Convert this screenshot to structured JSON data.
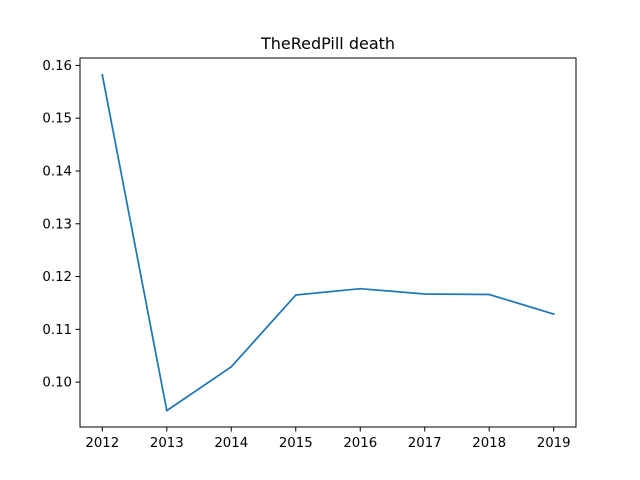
{
  "chart_data": {
    "type": "line",
    "title": "TheRedPill death",
    "xlabel": "",
    "ylabel": "",
    "x": [
      "2012",
      "2013",
      "2014",
      "2015",
      "2016",
      "2017",
      "2018",
      "2019"
    ],
    "series": [
      {
        "values": [
          0.1582,
          0.0946,
          0.1029,
          0.1165,
          0.1177,
          0.1167,
          0.1166,
          0.1129
        ],
        "color": "#1f77b4"
      }
    ],
    "y_ticks": [
      "0.10",
      "0.11",
      "0.12",
      "0.13",
      "0.14",
      "0.15",
      "0.16"
    ],
    "ylim": [
      0.0915,
      0.1614
    ],
    "grid": false,
    "legend": "none"
  }
}
